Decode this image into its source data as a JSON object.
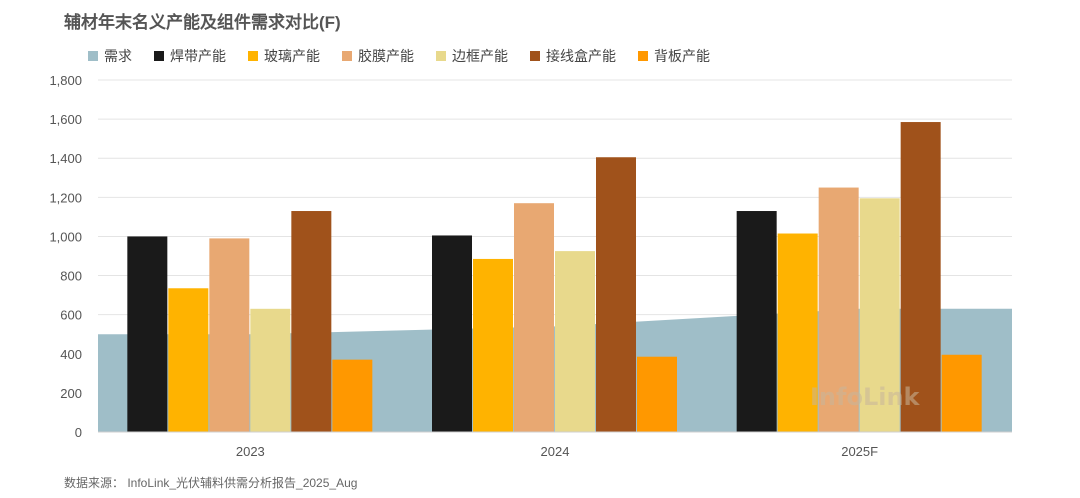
{
  "title": "辅材年末名义产能及组件需求对比(F)",
  "source": "数据来源： InfoLink_光伏辅料供需分析报告_2025_Aug",
  "watermark": "InfoLink",
  "chart_data": {
    "type": "bar",
    "title": "辅材年末名义产能及组件需求对比(F)",
    "categories": [
      "2023",
      "2024",
      "2025F"
    ],
    "ylim": [
      0,
      1800
    ],
    "yticks": [
      0,
      200,
      400,
      600,
      800,
      1000,
      1200,
      1400,
      1600,
      1800
    ],
    "ytick_labels": [
      "0",
      "200",
      "400",
      "600",
      "800",
      "1,000",
      "1,200",
      "1,400",
      "1,600",
      "1,800"
    ],
    "grid": true,
    "legend_position": "top",
    "area_series": {
      "name": "需求",
      "color": "#9fbec8",
      "values": [
        500,
        540,
        630
      ]
    },
    "series": [
      {
        "name": "焊带产能",
        "color": "#1a1a1a",
        "values": [
          1000,
          1005,
          1130
        ]
      },
      {
        "name": "玻璃产能",
        "color": "#ffb300",
        "values": [
          735,
          885,
          1015
        ]
      },
      {
        "name": "胶膜产能",
        "color": "#e8a872",
        "values": [
          990,
          1170,
          1250
        ]
      },
      {
        "name": "边框产能",
        "color": "#e8d98c",
        "values": [
          630,
          925,
          1195
        ]
      },
      {
        "name": "接线盒产能",
        "color": "#a0521b",
        "values": [
          1130,
          1405,
          1585
        ]
      },
      {
        "name": "背板产能",
        "color": "#ff9800",
        "values": [
          370,
          385,
          395
        ]
      }
    ]
  }
}
